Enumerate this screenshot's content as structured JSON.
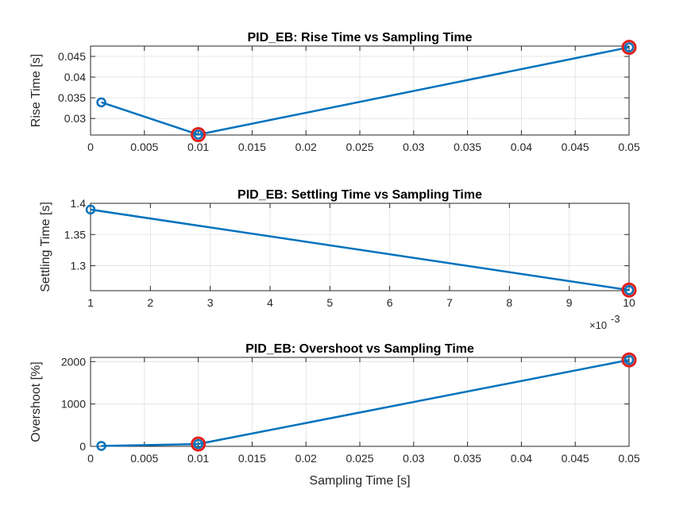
{
  "chart_data": [
    {
      "type": "line",
      "title": "PID_EB: Rise Time vs Sampling Time",
      "xlabel": "",
      "ylabel": "Rise Time [s]",
      "xlim": [
        0,
        0.05
      ],
      "ylim": [
        0.026,
        0.0475
      ],
      "xticks": [
        0,
        0.005,
        0.01,
        0.015,
        0.02,
        0.025,
        0.03,
        0.035,
        0.04,
        0.045,
        0.05
      ],
      "xtick_labels": [
        "0",
        "0.005",
        "0.01",
        "0.015",
        "0.02",
        "0.025",
        "0.03",
        "0.035",
        "0.04",
        "0.045",
        "0.05"
      ],
      "yticks": [
        0.03,
        0.035,
        0.04,
        0.045
      ],
      "ytick_labels": [
        "0.03",
        "0.035",
        "0.04",
        "0.045"
      ],
      "x_exponent_label": "",
      "grid": true,
      "series": [
        {
          "x": [
            0.001,
            0.01,
            0.05
          ],
          "y": [
            0.0339,
            0.0261,
            0.0472
          ],
          "highlight": [
            false,
            true,
            true
          ]
        }
      ]
    },
    {
      "type": "line",
      "title": "PID_EB: Settling Time vs Sampling Time",
      "xlabel": "",
      "ylabel": "Settling Time [s]",
      "xlim": [
        0.001,
        0.01
      ],
      "ylim": [
        1.26,
        1.4
      ],
      "xticks": [
        0.001,
        0.002,
        0.003,
        0.004,
        0.005,
        0.006,
        0.007,
        0.008,
        0.009,
        0.01
      ],
      "xtick_labels": [
        "1",
        "2",
        "3",
        "4",
        "5",
        "6",
        "7",
        "8",
        "9",
        "10"
      ],
      "yticks": [
        1.3,
        1.35,
        1.4
      ],
      "ytick_labels": [
        "1.3",
        "1.35",
        "1.4"
      ],
      "x_exponent_label": "×10",
      "x_exponent_power": "-3",
      "grid": true,
      "series": [
        {
          "x": [
            0.001,
            0.01
          ],
          "y": [
            1.39,
            1.261
          ],
          "highlight": [
            false,
            true
          ]
        }
      ]
    },
    {
      "type": "line",
      "title": "PID_EB: Overshoot vs Sampling Time",
      "xlabel": "Sampling Time [s]",
      "ylabel": "Overshoot [%]",
      "xlim": [
        0,
        0.05
      ],
      "ylim": [
        0,
        2100
      ],
      "xticks": [
        0,
        0.005,
        0.01,
        0.015,
        0.02,
        0.025,
        0.03,
        0.035,
        0.04,
        0.045,
        0.05
      ],
      "xtick_labels": [
        "0",
        "0.005",
        "0.01",
        "0.015",
        "0.02",
        "0.025",
        "0.03",
        "0.035",
        "0.04",
        "0.045",
        "0.05"
      ],
      "yticks": [
        0,
        1000,
        2000
      ],
      "ytick_labels": [
        "0",
        "1000",
        "2000"
      ],
      "x_exponent_label": "",
      "grid": true,
      "series": [
        {
          "x": [
            0.001,
            0.01,
            0.05
          ],
          "y": [
            10,
            55,
            2040
          ],
          "highlight": [
            false,
            true,
            true
          ]
        }
      ]
    }
  ],
  "colors": {
    "line": "#0072BD",
    "highlight": "#E0201B",
    "grid": "#DFDFDF",
    "axis": "#262626"
  }
}
